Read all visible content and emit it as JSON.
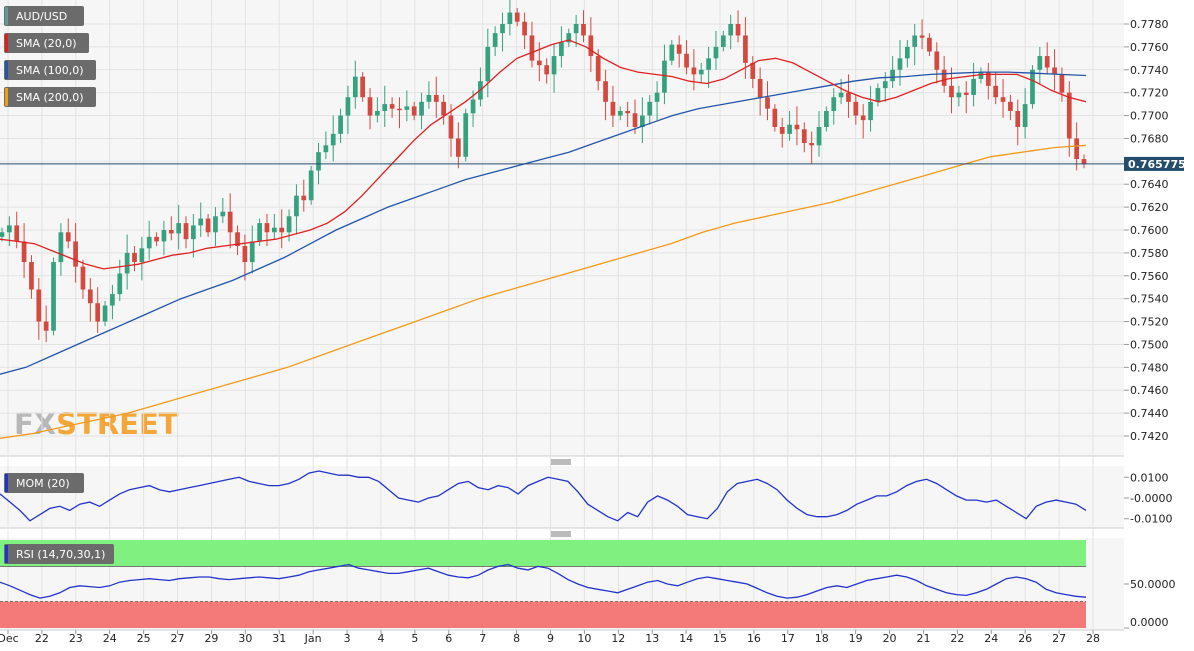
{
  "chart_data": [
    {
      "type": "candlestick",
      "title": "AUD/USD",
      "last_price": "0.765775",
      "ylim": [
        0.74,
        0.78
      ],
      "yticks": [
        "0.7780",
        "0.7760",
        "0.7740",
        "0.7720",
        "0.7700",
        "0.7680",
        "0.7660",
        "0.7640",
        "0.7620",
        "0.7600",
        "0.7580",
        "0.7560",
        "0.7540",
        "0.7520",
        "0.7500",
        "0.7480",
        "0.7460",
        "0.7440",
        "0.7420"
      ],
      "x_labels": [
        "Dec",
        "22",
        "23",
        "24",
        "25",
        "27",
        "29",
        "30",
        "31",
        "Jan",
        "3",
        "4",
        "5",
        "6",
        "7",
        "8",
        "9",
        "10",
        "12",
        "13",
        "14",
        "15",
        "16",
        "17",
        "18",
        "19",
        "20",
        "21",
        "22",
        "24",
        "26",
        "27",
        "28"
      ],
      "legend": [
        {
          "label": "AUD/USD",
          "color": "#5f9e92"
        },
        {
          "label": "SMA (20,0)",
          "color": "#e02020"
        },
        {
          "label": "SMA (100,0)",
          "color": "#2255aa"
        },
        {
          "label": "SMA (200,0)",
          "color": "#f29a1a"
        }
      ],
      "candle_colors": {
        "up": "#36a17f",
        "down": "#d4493f"
      },
      "close_series": [
        0.7598,
        0.7604,
        0.759,
        0.7572,
        0.7548,
        0.752,
        0.7512,
        0.7572,
        0.7598,
        0.759,
        0.7568,
        0.7548,
        0.7536,
        0.752,
        0.7534,
        0.7544,
        0.7562,
        0.758,
        0.7572,
        0.7584,
        0.7594,
        0.759,
        0.76,
        0.7597,
        0.7606,
        0.7592,
        0.7604,
        0.761,
        0.7598,
        0.7612,
        0.7616,
        0.7598,
        0.7586,
        0.7572,
        0.759,
        0.7606,
        0.7598,
        0.7602,
        0.7598,
        0.7612,
        0.763,
        0.7626,
        0.7652,
        0.7668,
        0.7674,
        0.7684,
        0.77,
        0.7716,
        0.7734,
        0.7716,
        0.77,
        0.7704,
        0.771,
        0.7706,
        0.7705,
        0.7708,
        0.77,
        0.7712,
        0.7718,
        0.7712,
        0.77,
        0.768,
        0.7664,
        0.7702,
        0.7714,
        0.773,
        0.776,
        0.7772,
        0.778,
        0.779,
        0.7782,
        0.777,
        0.7748,
        0.7744,
        0.7736,
        0.7752,
        0.7764,
        0.7772,
        0.778,
        0.777,
        0.7752,
        0.773,
        0.7712,
        0.77,
        0.7704,
        0.7702,
        0.769,
        0.77,
        0.7712,
        0.772,
        0.7748,
        0.7762,
        0.7754,
        0.7742,
        0.7736,
        0.774,
        0.775,
        0.776,
        0.777,
        0.778,
        0.777,
        0.7746,
        0.7732,
        0.7716,
        0.7706,
        0.769,
        0.7684,
        0.7692,
        0.7688,
        0.7676,
        0.7674,
        0.769,
        0.7704,
        0.7716,
        0.772,
        0.7712,
        0.77,
        0.7696,
        0.7712,
        0.7724,
        0.773,
        0.774,
        0.775,
        0.776,
        0.777,
        0.7768,
        0.7756,
        0.774,
        0.7726,
        0.7716,
        0.772,
        0.7718,
        0.7732,
        0.7738,
        0.7726,
        0.7716,
        0.7712,
        0.7704,
        0.769,
        0.771,
        0.774,
        0.7752,
        0.7742,
        0.7736,
        0.772,
        0.768,
        0.7662,
        0.7658
      ],
      "sma20": [
        0.7592,
        0.759,
        0.7588,
        0.7582,
        0.7576,
        0.757,
        0.7566,
        0.7568,
        0.757,
        0.7574,
        0.7578,
        0.758,
        0.7584,
        0.7586,
        0.7588,
        0.759,
        0.7592,
        0.7596,
        0.76,
        0.7606,
        0.7616,
        0.763,
        0.7646,
        0.7662,
        0.7678,
        0.7692,
        0.7702,
        0.7712,
        0.7724,
        0.7738,
        0.775,
        0.7756,
        0.7762,
        0.7766,
        0.776,
        0.775,
        0.7742,
        0.7738,
        0.7736,
        0.7734,
        0.773,
        0.7728,
        0.7732,
        0.774,
        0.7748,
        0.775,
        0.7746,
        0.7738,
        0.773,
        0.7722,
        0.7716,
        0.7712,
        0.7716,
        0.7722,
        0.7728,
        0.7732,
        0.7734,
        0.7736,
        0.7736,
        0.7736,
        0.773,
        0.7722,
        0.7716,
        0.7712
      ],
      "sma100": [
        0.7474,
        0.748,
        0.749,
        0.75,
        0.751,
        0.752,
        0.753,
        0.754,
        0.7548,
        0.7556,
        0.7566,
        0.7576,
        0.7588,
        0.76,
        0.761,
        0.762,
        0.7628,
        0.7636,
        0.7644,
        0.765,
        0.7656,
        0.7662,
        0.7668,
        0.7676,
        0.7684,
        0.7692,
        0.77,
        0.7706,
        0.771,
        0.7714,
        0.7718,
        0.7722,
        0.7726,
        0.773,
        0.7733,
        0.7734,
        0.7736,
        0.7737,
        0.7738,
        0.7738,
        0.7737,
        0.7736,
        0.7735
      ],
      "sma200": [
        0.7418,
        0.7422,
        0.7428,
        0.7434,
        0.744,
        0.7448,
        0.7456,
        0.7464,
        0.7472,
        0.748,
        0.749,
        0.75,
        0.751,
        0.752,
        0.753,
        0.754,
        0.7548,
        0.7556,
        0.7564,
        0.7572,
        0.758,
        0.7588,
        0.7598,
        0.7606,
        0.7612,
        0.7618,
        0.7624,
        0.7632,
        0.764,
        0.7648,
        0.7656,
        0.7664,
        0.7668,
        0.7672,
        0.7674
      ]
    },
    {
      "type": "line",
      "title": "MOM (20)",
      "yticks": [
        "0.0100",
        "-0.0000",
        "-0.0100"
      ],
      "ylim": [
        -0.0135,
        0.0135
      ],
      "color": "#2233cc",
      "values": [
        0.002,
        -0.002,
        -0.006,
        -0.011,
        -0.008,
        -0.005,
        -0.004,
        -0.006,
        -0.003,
        -0.002,
        -0.004,
        -0.001,
        0.002,
        0.004,
        0.005,
        0.006,
        0.004,
        0.003,
        0.004,
        0.005,
        0.006,
        0.007,
        0.008,
        0.009,
        0.01,
        0.008,
        0.007,
        0.006,
        0.006,
        0.007,
        0.009,
        0.012,
        0.013,
        0.012,
        0.011,
        0.011,
        0.01,
        0.01,
        0.008,
        0.004,
        0.0,
        -0.001,
        -0.002,
        0.0,
        0.001,
        0.004,
        0.007,
        0.008,
        0.005,
        0.004,
        0.006,
        0.005,
        0.002,
        0.006,
        0.008,
        0.01,
        0.009,
        0.008,
        0.003,
        -0.003,
        -0.006,
        -0.009,
        -0.011,
        -0.007,
        -0.009,
        -0.002,
        0.001,
        -0.001,
        -0.004,
        -0.008,
        -0.009,
        -0.01,
        -0.005,
        0.003,
        0.007,
        0.008,
        0.009,
        0.007,
        0.004,
        -0.001,
        -0.005,
        -0.008,
        -0.009,
        -0.009,
        -0.008,
        -0.006,
        -0.003,
        -0.001,
        0.001,
        0.001,
        0.003,
        0.006,
        0.008,
        0.009,
        0.007,
        0.004,
        0.001,
        -0.001,
        -0.001,
        -0.002,
        -0.001,
        -0.004,
        -0.007,
        -0.01,
        -0.004,
        -0.002,
        -0.001,
        -0.002,
        -0.003,
        -0.006
      ]
    },
    {
      "type": "line",
      "title": "RSI (14,70,30,1)",
      "yticks": [
        "50.0000",
        "0.0000"
      ],
      "ylim": [
        0,
        100
      ],
      "upper": 70,
      "lower": 30,
      "color": "#2233cc",
      "zone_colors": {
        "overbought": "#80f080",
        "oversold": "#f47a7a"
      },
      "values": [
        52,
        48,
        43,
        38,
        34,
        36,
        40,
        46,
        48,
        47,
        46,
        48,
        52,
        54,
        55,
        56,
        55,
        54,
        56,
        57,
        58,
        58,
        56,
        55,
        56,
        57,
        58,
        57,
        56,
        58,
        60,
        64,
        66,
        68,
        70,
        72,
        68,
        66,
        64,
        62,
        62,
        64,
        66,
        68,
        64,
        60,
        58,
        57,
        60,
        66,
        70,
        72,
        68,
        66,
        70,
        68,
        62,
        55,
        50,
        46,
        44,
        42,
        40,
        44,
        48,
        52,
        54,
        50,
        48,
        52,
        56,
        58,
        56,
        54,
        52,
        50,
        45,
        40,
        36,
        34,
        35,
        38,
        42,
        46,
        48,
        46,
        50,
        54,
        56,
        58,
        60,
        58,
        54,
        48,
        44,
        40,
        38,
        37,
        40,
        44,
        50,
        56,
        58,
        56,
        52,
        44,
        40,
        38,
        36,
        35
      ]
    }
  ],
  "watermark": {
    "prefix": "FX",
    "suffix": "STREET"
  }
}
